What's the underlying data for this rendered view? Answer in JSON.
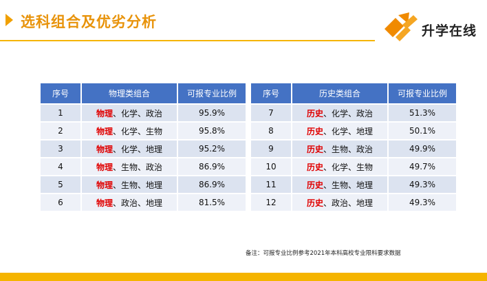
{
  "header": {
    "title": "选科组合及优劣分析",
    "logo_text": "升学在线",
    "colors": {
      "accent": "#f5b400",
      "title": "#e8930a",
      "table_header": "#4472c4",
      "highlight": "#e00000"
    }
  },
  "left_table": {
    "headers": [
      "序号",
      "物理类组合",
      "可报专业比例"
    ],
    "rows": [
      {
        "no": "1",
        "lead": "物理",
        "rest": "、化学、政治",
        "pct": "95.9%"
      },
      {
        "no": "2",
        "lead": "物理",
        "rest": "、化学、生物",
        "pct": "95.8%"
      },
      {
        "no": "3",
        "lead": "物理",
        "rest": "、化学、地理",
        "pct": "95.2%"
      },
      {
        "no": "4",
        "lead": "物理",
        "rest": "、生物、政治",
        "pct": "86.9%"
      },
      {
        "no": "5",
        "lead": "物理",
        "rest": "、生物、地理",
        "pct": "86.9%"
      },
      {
        "no": "6",
        "lead": "物理",
        "rest": "、政治、地理",
        "pct": "81.5%"
      }
    ]
  },
  "right_table": {
    "headers": [
      "序号",
      "历史类组合",
      "可报专业比例"
    ],
    "rows": [
      {
        "no": "7",
        "lead": "历史",
        "rest": "、化学、政治",
        "pct": "51.3%"
      },
      {
        "no": "8",
        "lead": "历史",
        "rest": "、化学、地理",
        "pct": "50.1%"
      },
      {
        "no": "9",
        "lead": "历史",
        "rest": "、生物、政治",
        "pct": "49.9%"
      },
      {
        "no": "10",
        "lead": "历史",
        "rest": "、化学、生物",
        "pct": "49.7%"
      },
      {
        "no": "11",
        "lead": "历史",
        "rest": "、生物、地理",
        "pct": "49.3%"
      },
      {
        "no": "12",
        "lead": "历史",
        "rest": "、政治、地理",
        "pct": "49.3%"
      }
    ]
  },
  "note": "备注：可报专业比例参考2021年本科高校专业限科要求数据"
}
